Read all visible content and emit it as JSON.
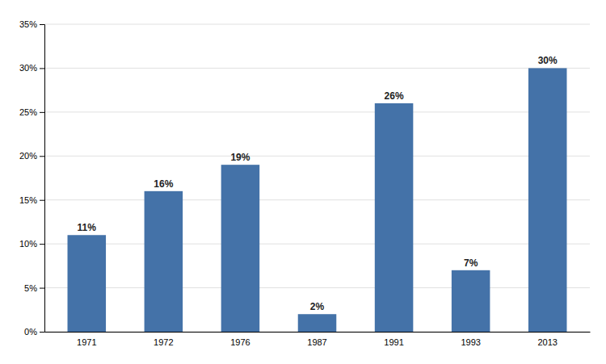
{
  "chart_data": {
    "type": "bar",
    "categories": [
      "1971",
      "1972",
      "1976",
      "1987",
      "1991",
      "1993",
      "2013"
    ],
    "values": [
      11,
      16,
      19,
      2,
      26,
      7,
      30
    ],
    "value_labels": [
      "11%",
      "16%",
      "19%",
      "2%",
      "26%",
      "7%",
      "30%"
    ],
    "color": "#4472a8",
    "ylim": [
      0,
      35
    ],
    "yticks": [
      {
        "value": 0,
        "label": "0%"
      },
      {
        "value": 5,
        "label": "5%"
      },
      {
        "value": 10,
        "label": "10%"
      },
      {
        "value": 15,
        "label": "15%"
      },
      {
        "value": 20,
        "label": "20%"
      },
      {
        "value": 25,
        "label": "25%"
      },
      {
        "value": 30,
        "label": "30%"
      },
      {
        "value": 35,
        "label": "35%"
      }
    ],
    "grid": true,
    "data_labels": true
  }
}
